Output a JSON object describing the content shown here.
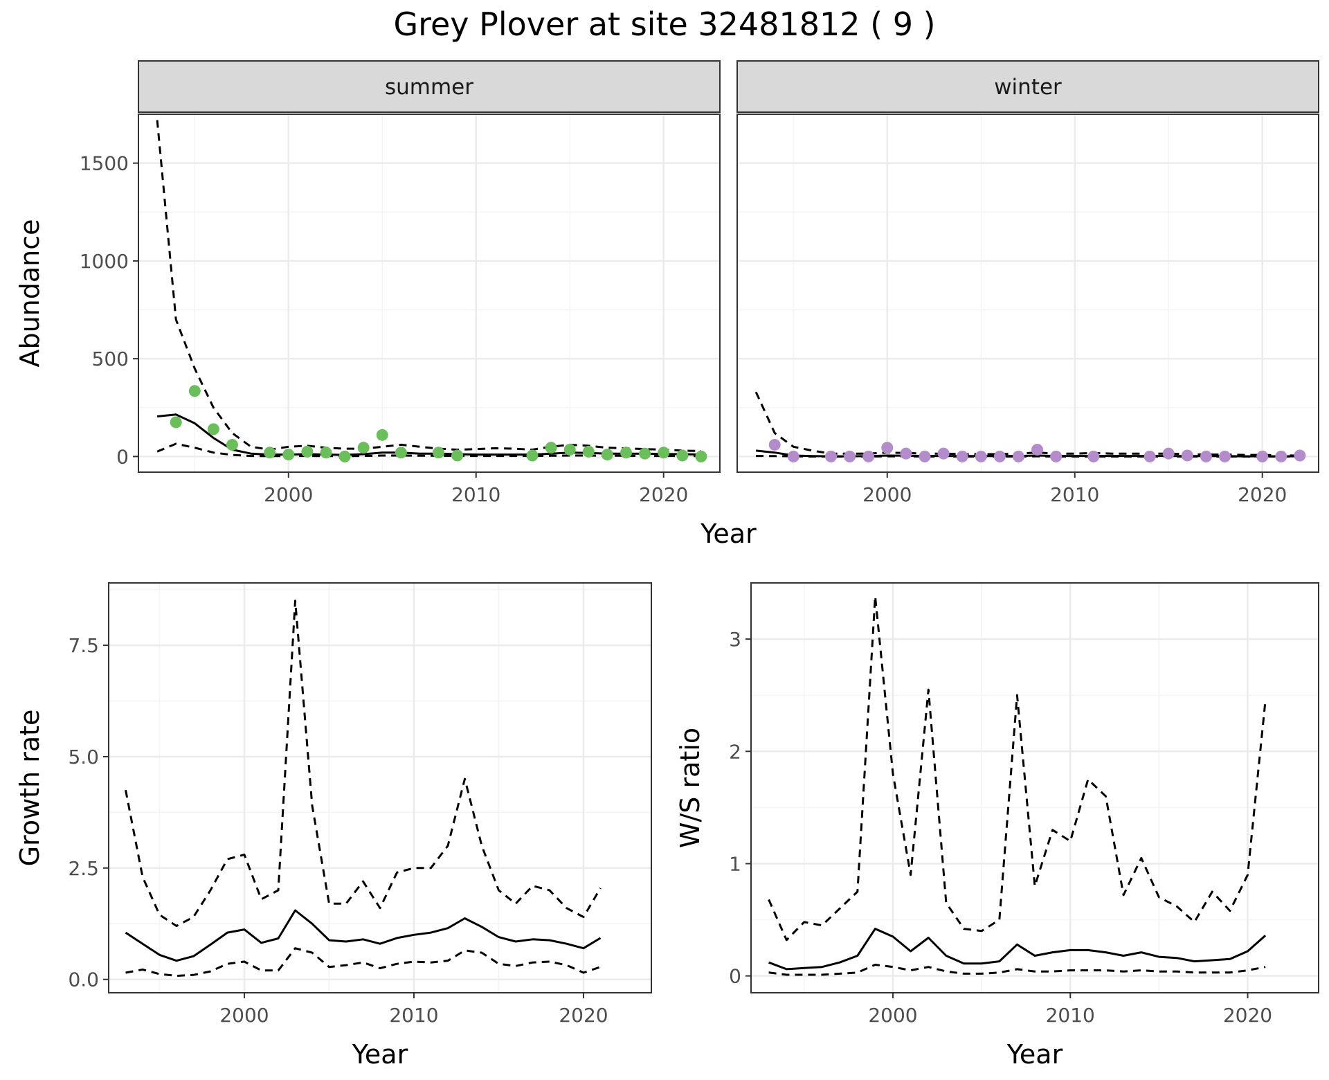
{
  "title": "Grey Plover at site 32481812 ( 9 )",
  "colors": {
    "summer_points": "#6abf5a",
    "winter_points": "#b48ccb",
    "grid_major": "#ebebeb",
    "grid_minor": "#f4f4f4",
    "strip_bg": "#d9d9d9",
    "line": "#000000"
  },
  "chart_data": [
    {
      "type": "line",
      "facet": "summer",
      "xlabel": "Year",
      "ylabel": "Abundance",
      "xlim": [
        1992,
        2023
      ],
      "ylim": [
        -80,
        1750
      ],
      "xticks": [
        2000,
        2010,
        2020
      ],
      "yticks": [
        0,
        500,
        1000,
        1500
      ],
      "x": [
        1993,
        1994,
        1995,
        1996,
        1997,
        1998,
        1999,
        2000,
        2001,
        2002,
        2003,
        2004,
        2005,
        2006,
        2007,
        2008,
        2009,
        2010,
        2011,
        2012,
        2013,
        2014,
        2015,
        2016,
        2017,
        2018,
        2019,
        2020,
        2021,
        2022
      ],
      "series": [
        {
          "role": "estimate",
          "style": "solid",
          "values": [
            205,
            215,
            170,
            95,
            35,
            15,
            10,
            10,
            12,
            10,
            8,
            12,
            20,
            20,
            15,
            15,
            12,
            10,
            10,
            10,
            10,
            15,
            20,
            18,
            15,
            15,
            14,
            13,
            12,
            10
          ]
        },
        {
          "role": "upper",
          "style": "dashed",
          "values": [
            1720,
            700,
            450,
            250,
            120,
            50,
            35,
            50,
            55,
            45,
            40,
            40,
            50,
            60,
            50,
            40,
            35,
            38,
            42,
            40,
            35,
            50,
            60,
            55,
            45,
            42,
            38,
            35,
            30,
            28
          ]
        },
        {
          "role": "lower",
          "style": "dashed",
          "values": [
            25,
            65,
            45,
            20,
            8,
            3,
            2,
            2,
            3,
            2,
            2,
            3,
            5,
            5,
            4,
            4,
            3,
            3,
            3,
            3,
            3,
            4,
            5,
            5,
            4,
            4,
            3,
            3,
            3,
            2
          ]
        }
      ],
      "points": {
        "x": [
          1994,
          1995,
          1996,
          1997,
          1999,
          2000,
          2001,
          2002,
          2003,
          2004,
          2005,
          2006,
          2008,
          2009,
          2013,
          2014,
          2015,
          2016,
          2017,
          2018,
          2019,
          2020,
          2021,
          2022
        ],
        "y": [
          175,
          335,
          140,
          60,
          20,
          10,
          25,
          20,
          0,
          45,
          110,
          20,
          20,
          5,
          5,
          45,
          35,
          25,
          10,
          20,
          15,
          20,
          5,
          0
        ]
      }
    },
    {
      "type": "line",
      "facet": "winter",
      "xlabel": "Year",
      "ylabel": "Abundance",
      "xlim": [
        1992,
        2023
      ],
      "ylim": [
        -80,
        1750
      ],
      "xticks": [
        2000,
        2010,
        2020
      ],
      "yticks": [
        0,
        500,
        1000,
        1500
      ],
      "x": [
        1993,
        1994,
        1995,
        1996,
        1997,
        1998,
        1999,
        2000,
        2001,
        2002,
        2003,
        2004,
        2005,
        2006,
        2007,
        2008,
        2009,
        2010,
        2011,
        2012,
        2013,
        2014,
        2015,
        2016,
        2017,
        2018,
        2019,
        2020,
        2021,
        2022
      ],
      "series": [
        {
          "role": "estimate",
          "style": "solid",
          "values": [
            30,
            20,
            5,
            2,
            1,
            1,
            2,
            5,
            4,
            3,
            3,
            2,
            2,
            2,
            3,
            5,
            3,
            3,
            3,
            3,
            3,
            3,
            3,
            2,
            2,
            2,
            1,
            1,
            1,
            1
          ]
        },
        {
          "role": "upper",
          "style": "dashed",
          "values": [
            330,
            120,
            50,
            30,
            15,
            15,
            15,
            20,
            18,
            15,
            15,
            12,
            12,
            12,
            15,
            20,
            15,
            15,
            18,
            15,
            15,
            15,
            15,
            12,
            10,
            10,
            8,
            8,
            6,
            5
          ]
        },
        {
          "role": "lower",
          "style": "dashed",
          "values": [
            3,
            2,
            1,
            0,
            0,
            0,
            0,
            1,
            1,
            0,
            0,
            0,
            0,
            0,
            0,
            1,
            0,
            0,
            0,
            0,
            0,
            0,
            0,
            0,
            0,
            0,
            0,
            0,
            0,
            0
          ]
        }
      ],
      "points": {
        "x": [
          1994,
          1995,
          1997,
          1998,
          1999,
          2000,
          2001,
          2002,
          2003,
          2004,
          2005,
          2006,
          2007,
          2008,
          2009,
          2011,
          2014,
          2015,
          2016,
          2017,
          2018,
          2020,
          2021,
          2022
        ],
        "y": [
          60,
          0,
          0,
          0,
          0,
          45,
          15,
          0,
          15,
          0,
          0,
          0,
          0,
          35,
          0,
          0,
          0,
          15,
          5,
          0,
          0,
          0,
          0,
          5
        ]
      }
    },
    {
      "type": "line",
      "xlabel": "Year",
      "ylabel": "Growth rate",
      "xlim": [
        1992,
        2024
      ],
      "ylim": [
        -0.3,
        8.9
      ],
      "xticks": [
        2000,
        2010,
        2020
      ],
      "yticks": [
        0.0,
        2.5,
        5.0,
        7.5
      ],
      "ytick_labels": [
        "0.0",
        "2.5",
        "5.0",
        "7.5"
      ],
      "x": [
        1993,
        1994,
        1995,
        1996,
        1997,
        1998,
        1999,
        2000,
        2001,
        2002,
        2003,
        2004,
        2005,
        2006,
        2007,
        2008,
        2009,
        2010,
        2011,
        2012,
        2013,
        2014,
        2015,
        2016,
        2017,
        2018,
        2019,
        2020,
        2021
      ],
      "series": [
        {
          "role": "estimate",
          "style": "solid",
          "values": [
            1.05,
            0.8,
            0.55,
            0.42,
            0.52,
            0.78,
            1.05,
            1.12,
            0.82,
            0.92,
            1.55,
            1.25,
            0.88,
            0.85,
            0.9,
            0.8,
            0.93,
            1.0,
            1.05,
            1.15,
            1.37,
            1.18,
            0.95,
            0.85,
            0.9,
            0.88,
            0.8,
            0.7,
            0.93
          ]
        },
        {
          "role": "upper",
          "style": "dashed",
          "values": [
            4.25,
            2.3,
            1.45,
            1.2,
            1.4,
            2.0,
            2.7,
            2.8,
            1.8,
            2.0,
            8.5,
            3.9,
            1.7,
            1.7,
            2.2,
            1.6,
            2.4,
            2.5,
            2.5,
            3.0,
            4.5,
            3.0,
            2.0,
            1.7,
            2.1,
            2.0,
            1.6,
            1.4,
            2.05
          ]
        },
        {
          "role": "lower",
          "style": "dashed",
          "values": [
            0.15,
            0.22,
            0.12,
            0.08,
            0.1,
            0.18,
            0.35,
            0.4,
            0.2,
            0.2,
            0.7,
            0.6,
            0.28,
            0.32,
            0.38,
            0.25,
            0.35,
            0.4,
            0.38,
            0.42,
            0.65,
            0.6,
            0.35,
            0.3,
            0.38,
            0.4,
            0.32,
            0.15,
            0.28
          ]
        }
      ]
    },
    {
      "type": "line",
      "xlabel": "Year",
      "ylabel": "W/S ratio",
      "xlim": [
        1992,
        2024
      ],
      "ylim": [
        -0.15,
        3.5
      ],
      "xticks": [
        2000,
        2010,
        2020
      ],
      "yticks": [
        0,
        1,
        2,
        3
      ],
      "x": [
        1993,
        1994,
        1995,
        1996,
        1997,
        1998,
        1999,
        2000,
        2001,
        2002,
        2003,
        2004,
        2005,
        2006,
        2007,
        2008,
        2009,
        2010,
        2011,
        2012,
        2013,
        2014,
        2015,
        2016,
        2017,
        2018,
        2019,
        2020,
        2021
      ],
      "series": [
        {
          "role": "estimate",
          "style": "solid",
          "values": [
            0.12,
            0.06,
            0.07,
            0.08,
            0.12,
            0.18,
            0.42,
            0.35,
            0.22,
            0.34,
            0.18,
            0.11,
            0.11,
            0.13,
            0.28,
            0.18,
            0.21,
            0.23,
            0.23,
            0.21,
            0.18,
            0.21,
            0.17,
            0.16,
            0.13,
            0.14,
            0.15,
            0.22,
            0.36
          ]
        },
        {
          "role": "upper",
          "style": "dashed",
          "values": [
            0.68,
            0.32,
            0.48,
            0.45,
            0.6,
            0.75,
            3.38,
            1.8,
            0.9,
            2.55,
            0.65,
            0.42,
            0.4,
            0.5,
            2.5,
            0.8,
            1.3,
            1.2,
            1.75,
            1.6,
            0.72,
            1.05,
            0.7,
            0.62,
            0.48,
            0.75,
            0.58,
            0.9,
            2.45
          ]
        },
        {
          "role": "lower",
          "style": "dashed",
          "values": [
            0.03,
            0.01,
            0.01,
            0.01,
            0.02,
            0.03,
            0.1,
            0.08,
            0.05,
            0.08,
            0.04,
            0.02,
            0.02,
            0.03,
            0.06,
            0.04,
            0.04,
            0.05,
            0.05,
            0.05,
            0.04,
            0.05,
            0.04,
            0.04,
            0.03,
            0.03,
            0.03,
            0.05,
            0.08
          ]
        }
      ]
    }
  ],
  "strips": [
    "summer",
    "winter"
  ]
}
